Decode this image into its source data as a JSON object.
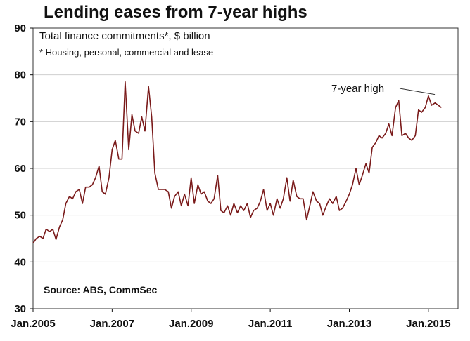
{
  "chart_data": {
    "type": "line",
    "title": "Lending eases from 7-year highs",
    "subtitle": "Total finance commitments*, $ billion",
    "footnote": "* Housing, personal, commercial and lease",
    "source": "Source: ABS, CommSec",
    "ylim": [
      30,
      90
    ],
    "yticks": [
      30,
      40,
      50,
      60,
      70,
      80,
      90
    ],
    "xlim": [
      2005.0,
      2015.75
    ],
    "xticks": [
      {
        "value": 2005,
        "label": "Jan.2005"
      },
      {
        "value": 2007,
        "label": "Jan.2007"
      },
      {
        "value": 2009,
        "label": "Jan.2009"
      },
      {
        "value": 2011,
        "label": "Jan.2011"
      },
      {
        "value": 2013,
        "label": "Jan.2013"
      },
      {
        "value": 2015,
        "label": "Jan.2015"
      }
    ],
    "grid": true,
    "line_color": "#7a1a1a",
    "annotation": {
      "text": "7-year high",
      "x": 2015.2,
      "y": 75.5
    },
    "series": [
      {
        "x": [
          2005.0,
          2005.08,
          2005.17,
          2005.25,
          2005.33,
          2005.42,
          2005.5,
          2005.58,
          2005.67,
          2005.75,
          2005.83,
          2005.92,
          2006.0,
          2006.08,
          2006.17,
          2006.25,
          2006.33,
          2006.42,
          2006.5,
          2006.58,
          2006.67,
          2006.75,
          2006.83,
          2006.92,
          2007.0,
          2007.08,
          2007.17,
          2007.25,
          2007.33,
          2007.42,
          2007.5,
          2007.58,
          2007.67,
          2007.75,
          2007.83,
          2007.92,
          2008.0,
          2008.08,
          2008.17,
          2008.25,
          2008.33,
          2008.42,
          2008.5,
          2008.58,
          2008.67,
          2008.75,
          2008.83,
          2008.92,
          2009.0,
          2009.08,
          2009.17,
          2009.25,
          2009.33,
          2009.42,
          2009.5,
          2009.58,
          2009.67,
          2009.75,
          2009.83,
          2009.92,
          2010.0,
          2010.08,
          2010.17,
          2010.25,
          2010.33,
          2010.42,
          2010.5,
          2010.58,
          2010.67,
          2010.75,
          2010.83,
          2010.92,
          2011.0,
          2011.08,
          2011.17,
          2011.25,
          2011.33,
          2011.42,
          2011.5,
          2011.58,
          2011.67,
          2011.75,
          2011.83,
          2011.92,
          2012.0,
          2012.08,
          2012.17,
          2012.25,
          2012.33,
          2012.42,
          2012.5,
          2012.58,
          2012.67,
          2012.75,
          2012.83,
          2012.92,
          2013.0,
          2013.08,
          2013.17,
          2013.25,
          2013.33,
          2013.42,
          2013.5,
          2013.58,
          2013.67,
          2013.75,
          2013.83,
          2013.92,
          2014.0,
          2014.08,
          2014.17,
          2014.25,
          2014.33,
          2014.42,
          2014.5,
          2014.58,
          2014.67,
          2014.75,
          2014.83,
          2014.92,
          2015.0,
          2015.08,
          2015.17,
          2015.25,
          2015.33
        ],
        "values": [
          44.0,
          45.0,
          45.5,
          45.0,
          47.0,
          46.5,
          47.0,
          44.8,
          47.5,
          49.0,
          52.5,
          54.0,
          53.5,
          55.0,
          55.5,
          52.5,
          56.0,
          56.0,
          56.5,
          58.0,
          60.5,
          55.0,
          54.5,
          58.0,
          64.0,
          66.0,
          62.0,
          62.0,
          78.5,
          64.0,
          71.5,
          68.0,
          67.5,
          71.0,
          68.0,
          77.5,
          71.0,
          59.0,
          55.5,
          55.5,
          55.5,
          55.0,
          51.5,
          54.0,
          55.0,
          52.0,
          54.5,
          52.0,
          58.0,
          52.5,
          56.5,
          54.5,
          55.0,
          53.0,
          52.5,
          53.5,
          58.5,
          51.0,
          50.5,
          52.0,
          50.0,
          52.5,
          50.5,
          52.0,
          51.0,
          52.5,
          49.5,
          51.0,
          51.5,
          53.0,
          55.5,
          51.0,
          52.5,
          50.0,
          53.5,
          51.5,
          53.5,
          58.0,
          53.0,
          57.5,
          54.0,
          53.5,
          53.5,
          49.0,
          52.0,
          55.0,
          53.0,
          52.5,
          50.0,
          52.0,
          53.5,
          52.5,
          54.0,
          51.0,
          51.5,
          53.0,
          54.5,
          56.5,
          60.0,
          56.5,
          58.5,
          61.0,
          59.0,
          64.5,
          65.5,
          67.0,
          66.5,
          67.5,
          69.5,
          67.0,
          73.0,
          74.5,
          67.0,
          67.5,
          66.5,
          66.0,
          67.0,
          72.5,
          72.0,
          73.0,
          75.5,
          73.5,
          74.0,
          73.5,
          73.0
        ]
      }
    ]
  }
}
